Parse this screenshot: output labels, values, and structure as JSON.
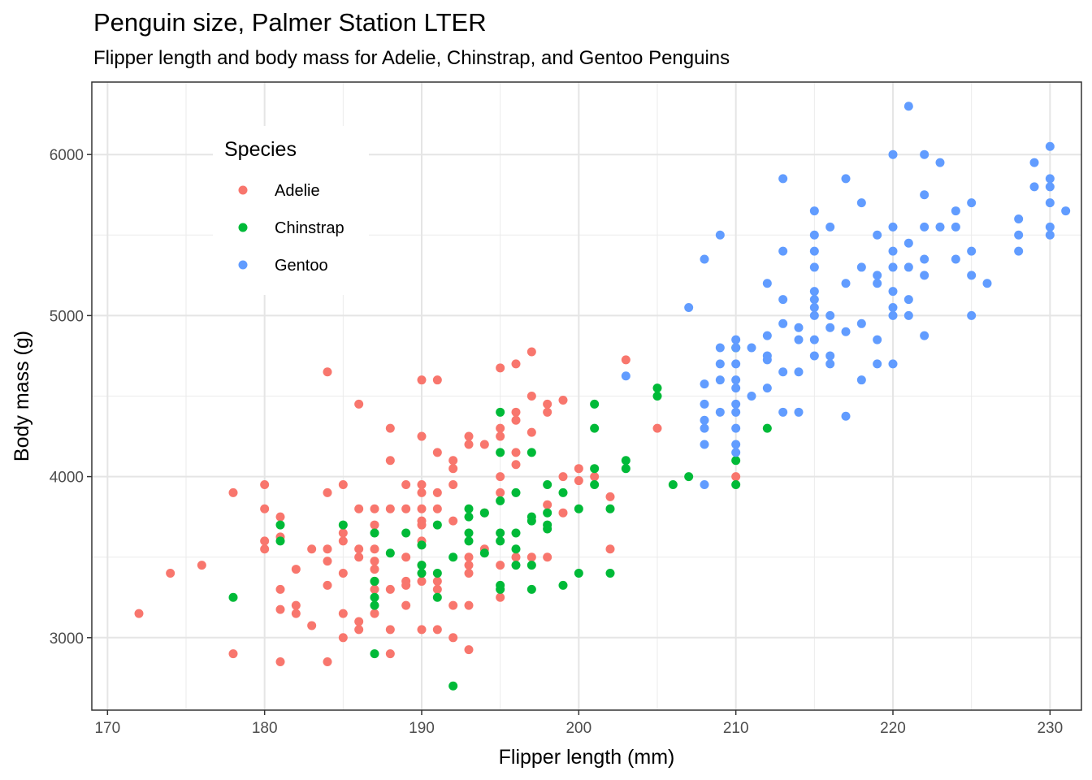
{
  "chart_data": {
    "type": "scatter",
    "title": "Penguin size, Palmer Station LTER",
    "subtitle": "Flipper length and body mass for Adelie, Chinstrap, and Gentoo Penguins",
    "xlabel": "Flipper length (mm)",
    "ylabel": "Body mass (g)",
    "xlim": [
      169,
      232
    ],
    "ylim": [
      2550,
      6450
    ],
    "x_ticks": [
      170,
      180,
      190,
      200,
      210,
      220,
      230
    ],
    "y_ticks": [
      3000,
      4000,
      5000,
      6000
    ],
    "grid": true,
    "legend": {
      "title": "Species",
      "position": "top-left"
    },
    "series": [
      {
        "name": "Adelie",
        "color": "#F8766D",
        "points": [
          [
            172,
            3150
          ],
          [
            174,
            3400
          ],
          [
            176,
            3450
          ],
          [
            178,
            3900
          ],
          [
            178,
            2900
          ],
          [
            180,
            3950
          ],
          [
            180,
            3800
          ],
          [
            180,
            3600
          ],
          [
            180,
            3550
          ],
          [
            181,
            3750
          ],
          [
            181,
            3625
          ],
          [
            181,
            3300
          ],
          [
            181,
            3175
          ],
          [
            181,
            2850
          ],
          [
            182,
            3425
          ],
          [
            182,
            3200
          ],
          [
            182,
            3150
          ],
          [
            183,
            3550
          ],
          [
            183,
            3075
          ],
          [
            184,
            4650
          ],
          [
            184,
            3900
          ],
          [
            184,
            3550
          ],
          [
            184,
            3475
          ],
          [
            184,
            3325
          ],
          [
            184,
            2850
          ],
          [
            185,
            3950
          ],
          [
            185,
            3650
          ],
          [
            185,
            3600
          ],
          [
            185,
            3400
          ],
          [
            185,
            3150
          ],
          [
            185,
            3000
          ],
          [
            186,
            4450
          ],
          [
            186,
            3800
          ],
          [
            186,
            3550
          ],
          [
            186,
            3500
          ],
          [
            186,
            3100
          ],
          [
            186,
            3050
          ],
          [
            187,
            3800
          ],
          [
            187,
            3700
          ],
          [
            187,
            3550
          ],
          [
            187,
            3475
          ],
          [
            187,
            3425
          ],
          [
            187,
            3350
          ],
          [
            187,
            3300
          ],
          [
            187,
            3150
          ],
          [
            188,
            4300
          ],
          [
            188,
            4100
          ],
          [
            188,
            3800
          ],
          [
            188,
            3300
          ],
          [
            188,
            3050
          ],
          [
            188,
            2900
          ],
          [
            189,
            3950
          ],
          [
            189,
            3800
          ],
          [
            189,
            3500
          ],
          [
            189,
            3350
          ],
          [
            189,
            3325
          ],
          [
            189,
            3200
          ],
          [
            190,
            4600
          ],
          [
            190,
            4250
          ],
          [
            190,
            3950
          ],
          [
            190,
            3900
          ],
          [
            190,
            3800
          ],
          [
            190,
            3725
          ],
          [
            190,
            3700
          ],
          [
            190,
            3600
          ],
          [
            190,
            3450
          ],
          [
            190,
            3350
          ],
          [
            190,
            3050
          ],
          [
            191,
            4600
          ],
          [
            191,
            4150
          ],
          [
            191,
            3900
          ],
          [
            191,
            3800
          ],
          [
            191,
            3350
          ],
          [
            191,
            3300
          ],
          [
            191,
            3050
          ],
          [
            192,
            4100
          ],
          [
            192,
            4050
          ],
          [
            192,
            3950
          ],
          [
            192,
            3725
          ],
          [
            192,
            3200
          ],
          [
            192,
            3000
          ],
          [
            193,
            4250
          ],
          [
            193,
            4200
          ],
          [
            193,
            3500
          ],
          [
            193,
            3450
          ],
          [
            193,
            3400
          ],
          [
            193,
            3200
          ],
          [
            193,
            2925
          ],
          [
            194,
            4200
          ],
          [
            194,
            3775
          ],
          [
            194,
            3550
          ],
          [
            195,
            4675
          ],
          [
            195,
            4300
          ],
          [
            195,
            4250
          ],
          [
            195,
            4000
          ],
          [
            195,
            3900
          ],
          [
            195,
            3450
          ],
          [
            195,
            3250
          ],
          [
            196,
            4700
          ],
          [
            196,
            4400
          ],
          [
            196,
            4350
          ],
          [
            196,
            4150
          ],
          [
            196,
            4075
          ],
          [
            196,
            3500
          ],
          [
            197,
            4775
          ],
          [
            197,
            4500
          ],
          [
            197,
            4275
          ],
          [
            197,
            3500
          ],
          [
            198,
            4450
          ],
          [
            198,
            4400
          ],
          [
            198,
            3825
          ],
          [
            198,
            3500
          ],
          [
            199,
            4475
          ],
          [
            199,
            4000
          ],
          [
            199,
            3775
          ],
          [
            200,
            4050
          ],
          [
            200,
            3975
          ],
          [
            201,
            4000
          ],
          [
            202,
            3875
          ],
          [
            202,
            3550
          ],
          [
            203,
            4725
          ],
          [
            205,
            4300
          ],
          [
            210,
            4000
          ]
        ]
      },
      {
        "name": "Chinstrap",
        "color": "#00BA38",
        "points": [
          [
            178,
            3250
          ],
          [
            181,
            3700
          ],
          [
            181,
            3600
          ],
          [
            185,
            3700
          ],
          [
            187,
            3650
          ],
          [
            187,
            3350
          ],
          [
            187,
            3250
          ],
          [
            187,
            3200
          ],
          [
            187,
            2900
          ],
          [
            188,
            3525
          ],
          [
            189,
            3650
          ],
          [
            190,
            3575
          ],
          [
            190,
            3450
          ],
          [
            190,
            3400
          ],
          [
            191,
            3700
          ],
          [
            191,
            3400
          ],
          [
            191,
            3250
          ],
          [
            192,
            3500
          ],
          [
            192,
            2700
          ],
          [
            193,
            3800
          ],
          [
            193,
            3750
          ],
          [
            193,
            3650
          ],
          [
            193,
            3600
          ],
          [
            194,
            3775
          ],
          [
            194,
            3525
          ],
          [
            195,
            4400
          ],
          [
            195,
            4150
          ],
          [
            195,
            3850
          ],
          [
            195,
            3650
          ],
          [
            195,
            3600
          ],
          [
            195,
            3325
          ],
          [
            195,
            3300
          ],
          [
            196,
            3900
          ],
          [
            196,
            3650
          ],
          [
            196,
            3550
          ],
          [
            196,
            3450
          ],
          [
            197,
            4150
          ],
          [
            197,
            3750
          ],
          [
            197,
            3725
          ],
          [
            197,
            3450
          ],
          [
            197,
            3300
          ],
          [
            198,
            3950
          ],
          [
            198,
            3775
          ],
          [
            198,
            3700
          ],
          [
            198,
            3675
          ],
          [
            199,
            3900
          ],
          [
            199,
            3325
          ],
          [
            200,
            3800
          ],
          [
            200,
            3400
          ],
          [
            201,
            4450
          ],
          [
            201,
            4300
          ],
          [
            201,
            4050
          ],
          [
            201,
            3950
          ],
          [
            202,
            3800
          ],
          [
            202,
            3400
          ],
          [
            203,
            4100
          ],
          [
            203,
            4050
          ],
          [
            205,
            4550
          ],
          [
            205,
            4500
          ],
          [
            206,
            3950
          ],
          [
            207,
            4000
          ],
          [
            210,
            4800
          ],
          [
            210,
            4100
          ],
          [
            210,
            3950
          ],
          [
            212,
            4300
          ]
        ]
      },
      {
        "name": "Gentoo",
        "color": "#619CFF",
        "points": [
          [
            203,
            4625
          ],
          [
            207,
            5050
          ],
          [
            208,
            5350
          ],
          [
            208,
            4575
          ],
          [
            208,
            4450
          ],
          [
            208,
            4350
          ],
          [
            208,
            4300
          ],
          [
            208,
            4200
          ],
          [
            208,
            3950
          ],
          [
            209,
            5500
          ],
          [
            209,
            4800
          ],
          [
            209,
            4700
          ],
          [
            209,
            4600
          ],
          [
            209,
            4400
          ],
          [
            210,
            4850
          ],
          [
            210,
            4800
          ],
          [
            210,
            4700
          ],
          [
            210,
            4600
          ],
          [
            210,
            4550
          ],
          [
            210,
            4450
          ],
          [
            210,
            4400
          ],
          [
            210,
            4300
          ],
          [
            210,
            4200
          ],
          [
            210,
            4150
          ],
          [
            211,
            4800
          ],
          [
            211,
            4500
          ],
          [
            212,
            5200
          ],
          [
            212,
            4875
          ],
          [
            212,
            4750
          ],
          [
            212,
            4725
          ],
          [
            212,
            4550
          ],
          [
            213,
            5850
          ],
          [
            213,
            5400
          ],
          [
            213,
            5100
          ],
          [
            213,
            4950
          ],
          [
            213,
            4650
          ],
          [
            213,
            4400
          ],
          [
            214,
            4925
          ],
          [
            214,
            4850
          ],
          [
            214,
            4650
          ],
          [
            214,
            4400
          ],
          [
            215,
            5650
          ],
          [
            215,
            5500
          ],
          [
            215,
            5400
          ],
          [
            215,
            5300
          ],
          [
            215,
            5150
          ],
          [
            215,
            5100
          ],
          [
            215,
            5050
          ],
          [
            215,
            5000
          ],
          [
            215,
            4850
          ],
          [
            215,
            4750
          ],
          [
            216,
            5550
          ],
          [
            216,
            5000
          ],
          [
            216,
            4925
          ],
          [
            216,
            4750
          ],
          [
            216,
            4700
          ],
          [
            217,
            5850
          ],
          [
            217,
            5200
          ],
          [
            217,
            4900
          ],
          [
            217,
            4375
          ],
          [
            218,
            5700
          ],
          [
            218,
            5300
          ],
          [
            218,
            4950
          ],
          [
            218,
            4600
          ],
          [
            219,
            5500
          ],
          [
            219,
            5250
          ],
          [
            219,
            5200
          ],
          [
            219,
            4850
          ],
          [
            219,
            4700
          ],
          [
            220,
            6000
          ],
          [
            220,
            5550
          ],
          [
            220,
            5400
          ],
          [
            220,
            5300
          ],
          [
            220,
            5150
          ],
          [
            220,
            5050
          ],
          [
            220,
            5000
          ],
          [
            220,
            4700
          ],
          [
            221,
            6300
          ],
          [
            221,
            5450
          ],
          [
            221,
            5300
          ],
          [
            221,
            5100
          ],
          [
            221,
            5000
          ],
          [
            222,
            6000
          ],
          [
            222,
            5750
          ],
          [
            222,
            5550
          ],
          [
            222,
            5350
          ],
          [
            222,
            5250
          ],
          [
            222,
            4875
          ],
          [
            223,
            5950
          ],
          [
            223,
            5550
          ],
          [
            224,
            5650
          ],
          [
            224,
            5550
          ],
          [
            224,
            5350
          ],
          [
            225,
            5700
          ],
          [
            225,
            5400
          ],
          [
            225,
            5250
          ],
          [
            225,
            5000
          ],
          [
            226,
            5200
          ],
          [
            228,
            5600
          ],
          [
            228,
            5500
          ],
          [
            228,
            5400
          ],
          [
            229,
            5950
          ],
          [
            229,
            5800
          ],
          [
            230,
            6050
          ],
          [
            230,
            5850
          ],
          [
            230,
            5800
          ],
          [
            230,
            5700
          ],
          [
            230,
            5550
          ],
          [
            230,
            5500
          ],
          [
            231,
            5650
          ]
        ]
      }
    ]
  }
}
